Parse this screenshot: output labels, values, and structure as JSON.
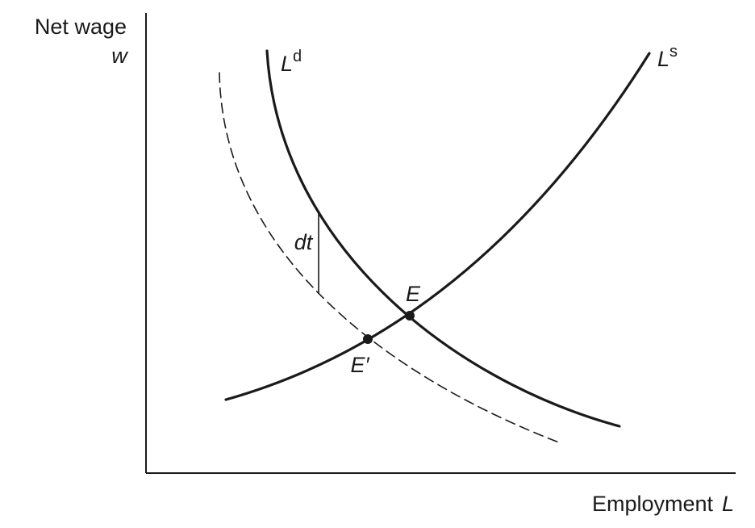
{
  "axes": {
    "y_label": "Net wage",
    "y_symbol": "w",
    "x_label": "Employment",
    "x_symbol": "L"
  },
  "curves": {
    "demand": {
      "base": "L",
      "superscript": "d"
    },
    "supply": {
      "base": "L",
      "superscript": "s"
    },
    "shifted_demand_style": "dashed"
  },
  "points": {
    "initial_equilibrium": "E",
    "new_equilibrium": "E′"
  },
  "gap_label": "dt",
  "colors": {
    "ink": "#1a1a1a",
    "background": "#ffffff"
  }
}
